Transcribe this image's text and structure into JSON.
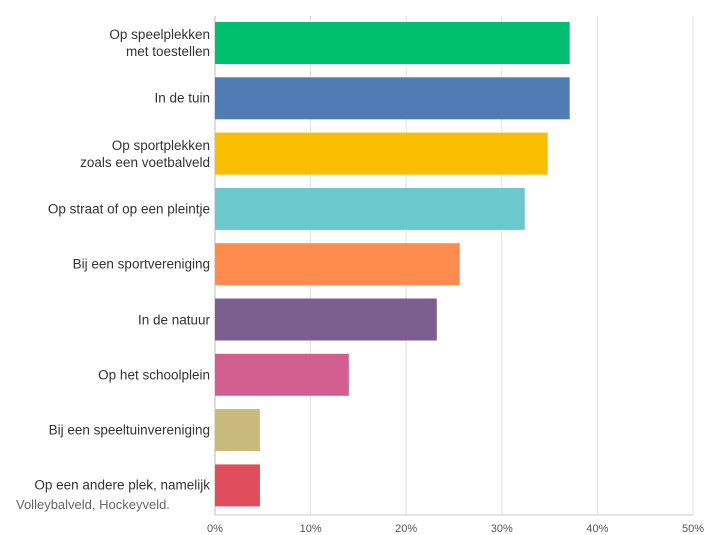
{
  "chart_data": {
    "type": "bar",
    "orientation": "horizontal",
    "categories": [
      "Op speelplekken\nmet toestellen",
      "In de tuin",
      "Op sportplekken\nzoals een voetbalveld",
      "Op straat of op een pleintje",
      "Bij een sportvereniging",
      "In de natuur",
      "Op het schoolplein",
      "Bij een speeltuinvereniging",
      "Op een andere plek, namelijk"
    ],
    "values": [
      37.1,
      37.1,
      34.8,
      32.4,
      25.6,
      23.2,
      14.0,
      4.7,
      4.7
    ],
    "colors": [
      "#00bf6f",
      "#507cb6",
      "#f9be00",
      "#6bc8cd",
      "#ff8b4f",
      "#7d5e90",
      "#d25f90",
      "#c9b97d",
      "#e04e5e"
    ],
    "annotations": [
      "Volleybalveld, Hockeyveld."
    ],
    "xlim": [
      0,
      50
    ],
    "xticks": [
      {
        "value": 0,
        "label": "0%"
      },
      {
        "value": 10,
        "label": "10%"
      },
      {
        "value": 20,
        "label": "20%"
      },
      {
        "value": 30,
        "label": "30%"
      },
      {
        "value": 40,
        "label": "40%"
      },
      {
        "value": 50,
        "label": "50%"
      }
    ],
    "grid": true
  }
}
